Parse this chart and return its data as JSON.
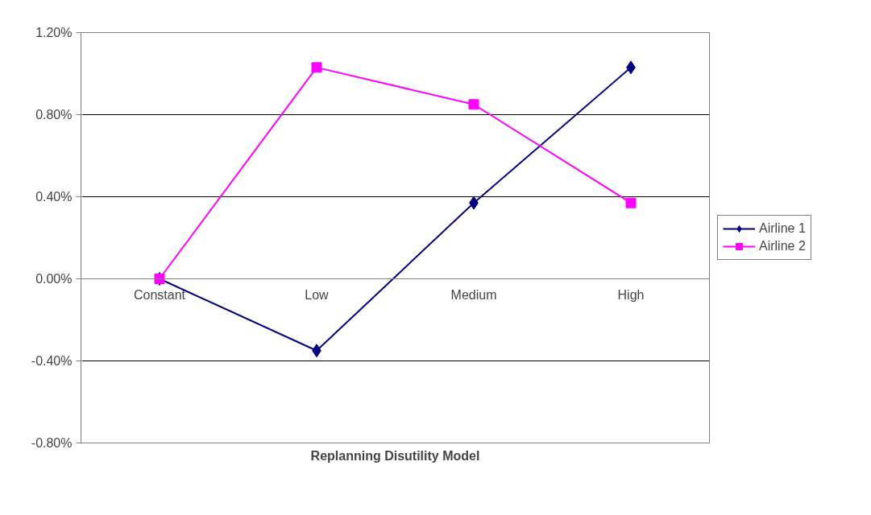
{
  "chart_data": {
    "type": "line",
    "xlabel": "Replanning Disutility Model",
    "categories": [
      "Constant",
      "Low",
      "Medium",
      "High"
    ],
    "series": [
      {
        "name": "Airline 1",
        "color": "#000080",
        "marker": "diamond",
        "values": [
          0,
          -0.35,
          0.37,
          1.03
        ]
      },
      {
        "name": "Airline 2",
        "color": "#ff00ff",
        "marker": "square",
        "values": [
          0,
          1.03,
          0.85,
          0.37
        ]
      }
    ],
    "ylim": [
      -0.8,
      1.2
    ],
    "yticks": [
      {
        "value": -0.8,
        "label": "-0.80%"
      },
      {
        "value": -0.4,
        "label": "-0.40%"
      },
      {
        "value": 0,
        "label": "0.00%"
      },
      {
        "value": 0.4,
        "label": "0.40%"
      },
      {
        "value": 0.8,
        "label": "0.80%"
      },
      {
        "value": 1.2,
        "label": "1.20%"
      }
    ],
    "grid": "y",
    "legend": "right",
    "line_style": "solid"
  }
}
